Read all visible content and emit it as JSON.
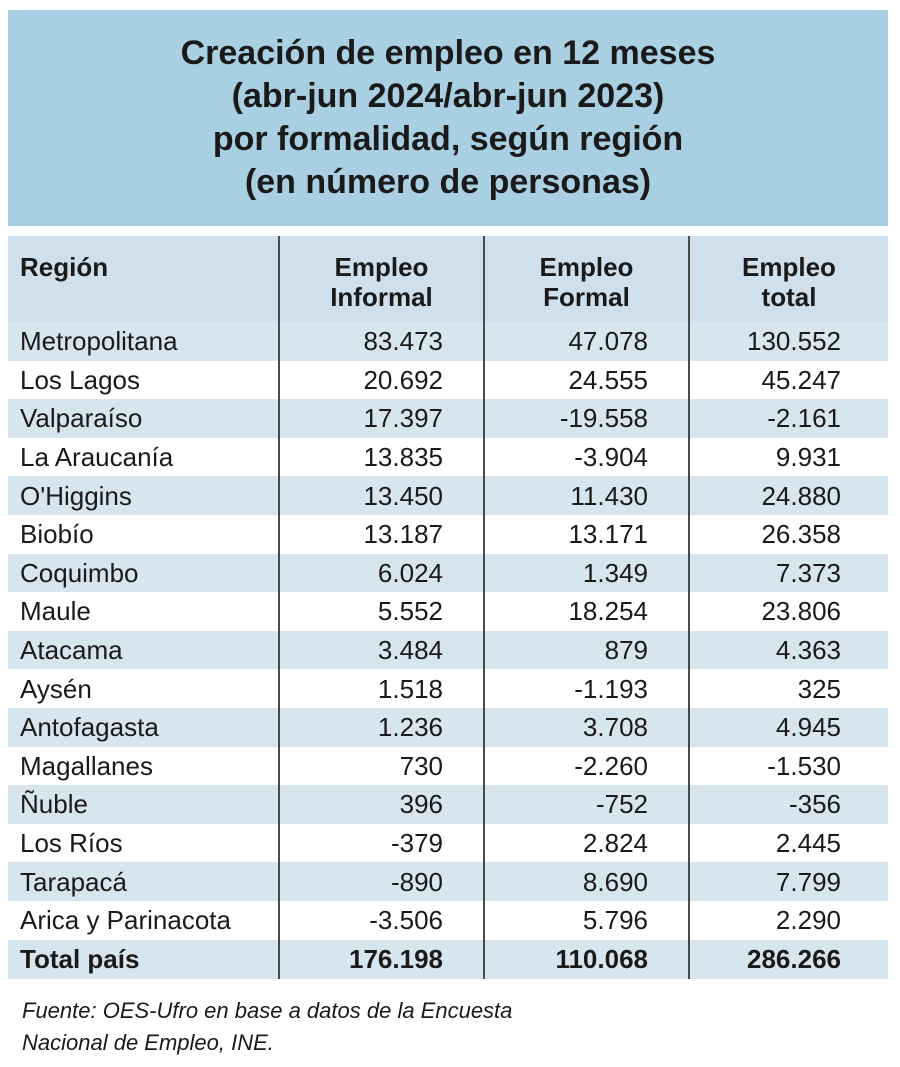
{
  "title": {
    "lines": [
      "Creación de empleo en 12 meses",
      "(abr-jun 2024/abr-jun 2023)",
      "por formalidad, según región",
      "(en número de personas)"
    ]
  },
  "table": {
    "headers": {
      "region": "Región",
      "informal": [
        "Empleo",
        "Informal"
      ],
      "formal": [
        "Empleo",
        "Formal"
      ],
      "total": [
        "Empleo",
        "total"
      ]
    },
    "rows": [
      {
        "region": "Metropolitana",
        "informal": "83.473",
        "formal": "47.078",
        "total": "130.552"
      },
      {
        "region": "Los Lagos",
        "informal": "20.692",
        "formal": "24.555",
        "total": "45.247"
      },
      {
        "region": "Valparaíso",
        "informal": "17.397",
        "formal": "-19.558",
        "total": "-2.161"
      },
      {
        "region": "La Araucanía",
        "informal": "13.835",
        "formal": "-3.904",
        "total": "9.931"
      },
      {
        "region": "O'Higgins",
        "informal": "13.450",
        "formal": "11.430",
        "total": "24.880"
      },
      {
        "region": "Biobío",
        "informal": "13.187",
        "formal": "13.171",
        "total": "26.358"
      },
      {
        "region": "Coquimbo",
        "informal": "6.024",
        "formal": "1.349",
        "total": "7.373"
      },
      {
        "region": "Maule",
        "informal": "5.552",
        "formal": "18.254",
        "total": "23.806"
      },
      {
        "region": "Atacama",
        "informal": "3.484",
        "formal": "879",
        "total": "4.363"
      },
      {
        "region": "Aysén",
        "informal": "1.518",
        "formal": "-1.193",
        "total": "325"
      },
      {
        "region": "Antofagasta",
        "informal": "1.236",
        "formal": "3.708",
        "total": "4.945"
      },
      {
        "region": "Magallanes",
        "informal": "730",
        "formal": "-2.260",
        "total": "-1.530"
      },
      {
        "region": "Ñuble",
        "informal": "396",
        "formal": "-752",
        "total": "-356"
      },
      {
        "region": "Los Ríos",
        "informal": "-379",
        "formal": "2.824",
        "total": "2.445"
      },
      {
        "region": "Tarapacá",
        "informal": "-890",
        "formal": "8.690",
        "total": "7.799"
      },
      {
        "region": "Arica y Parinacota",
        "informal": "-3.506",
        "formal": "5.796",
        "total": "2.290"
      }
    ],
    "total_row": {
      "region": "Total país",
      "informal": "176.198",
      "formal": "110.068",
      "total": "286.266"
    }
  },
  "source": {
    "lines": [
      "Fuente: OES-Ufro en base a datos de la Encuesta",
      "Nacional de Empleo, INE."
    ]
  },
  "colors": {
    "title_bg": "#a9cfe2",
    "header_bg": "#cfe0ec",
    "row_shade": "#d7e5ef"
  }
}
